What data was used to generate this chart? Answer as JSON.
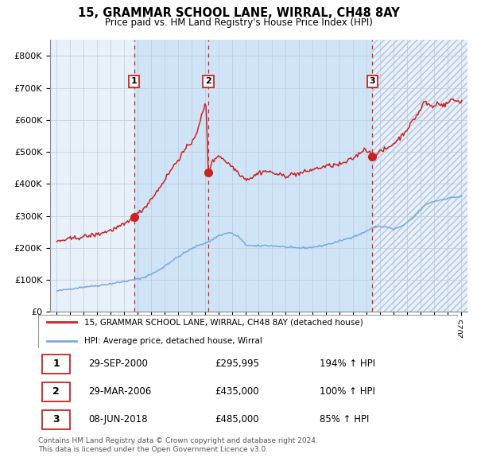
{
  "title": "15, GRAMMAR SCHOOL LANE, WIRRAL, CH48 8AY",
  "subtitle": "Price paid vs. HM Land Registry's House Price Index (HPI)",
  "legend_line1": "15, GRAMMAR SCHOOL LANE, WIRRAL, CH48 8AY (detached house)",
  "legend_line2": "HPI: Average price, detached house, Wirral",
  "footer1": "Contains HM Land Registry data © Crown copyright and database right 2024.",
  "footer2": "This data is licensed under the Open Government Licence v3.0.",
  "transactions": [
    {
      "num": 1,
      "date": "29-SEP-2000",
      "price": 295995,
      "pct": "194%",
      "x_year": 2000.75
    },
    {
      "num": 2,
      "date": "29-MAR-2006",
      "price": 435000,
      "pct": "100%",
      "x_year": 2006.25
    },
    {
      "num": 3,
      "date": "08-JUN-2018",
      "price": 485000,
      "pct": "85%",
      "x_year": 2018.44
    }
  ],
  "ylim": [
    0,
    850000
  ],
  "xlim_start": 1994.5,
  "xlim_end": 2025.5,
  "red_color": "#cc2222",
  "blue_color": "#7aaadd",
  "chart_bg": "#e8f0fa",
  "shaded_bg": "#d0e4f7",
  "grid_color": "#c0c8d8",
  "dashed_color": "#cc2222",
  "label_box_color": "#cc2222",
  "hatch_color": "#b0c4de"
}
